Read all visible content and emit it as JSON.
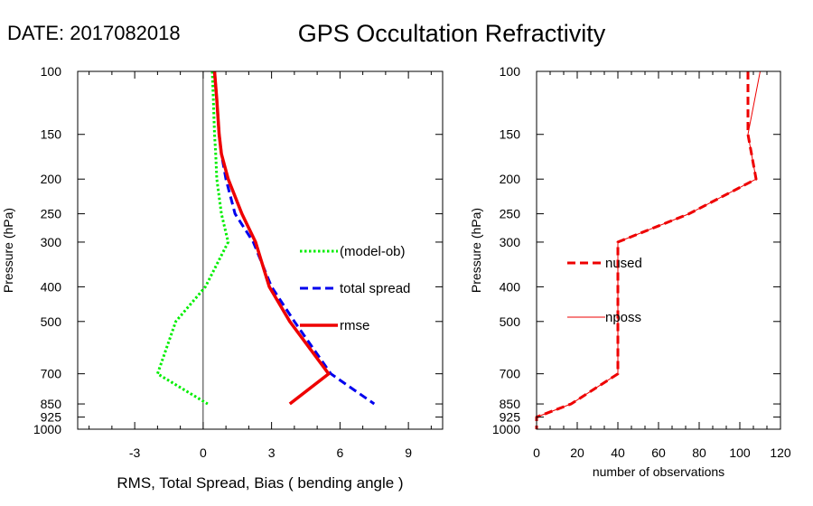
{
  "header": {
    "date": "DATE: 2017082018",
    "title": "GPS Occultation Refractivity"
  },
  "chart_data": [
    {
      "type": "line",
      "xlabel": "RMS, Total Spread, Bias ( bending angle )",
      "ylabel": "Pressure (hPa)",
      "xlim": [
        -5.5,
        10.5
      ],
      "ylim": [
        1000,
        100
      ],
      "y_scale": "log",
      "x_ticks": [
        -3,
        0,
        3,
        6,
        9
      ],
      "y_ticks": [
        100,
        150,
        200,
        250,
        300,
        400,
        500,
        700,
        850,
        925,
        1000
      ],
      "legend_position": "right",
      "grid": false,
      "series": [
        {
          "name": "(model-ob)",
          "color": "#00ee00",
          "style": "dotted",
          "x": [
            0.4,
            0.45,
            0.5,
            0.55,
            0.6,
            0.8,
            1.1,
            0.1,
            -1.2,
            -2.0,
            0.2
          ],
          "y": [
            100,
            120,
            150,
            170,
            200,
            250,
            300,
            400,
            500,
            700,
            850
          ]
        },
        {
          "name": "total spread",
          "color": "#0000ee",
          "style": "dashed",
          "x": [
            0.5,
            0.6,
            0.7,
            0.8,
            1.0,
            1.4,
            2.2,
            3.0,
            4.0,
            5.6,
            7.5
          ],
          "y": [
            100,
            120,
            150,
            170,
            200,
            250,
            300,
            400,
            500,
            700,
            850
          ]
        },
        {
          "name": "rmse",
          "color": "#ee0000",
          "style": "solid",
          "x": [
            0.5,
            0.6,
            0.7,
            0.8,
            1.1,
            1.7,
            2.3,
            2.9,
            3.8,
            5.5,
            3.8
          ],
          "y": [
            100,
            120,
            150,
            170,
            200,
            250,
            300,
            400,
            500,
            700,
            850
          ]
        }
      ]
    },
    {
      "type": "line",
      "xlabel": "number of observations",
      "ylabel": "Pressure (hPa)",
      "xlim": [
        0,
        120
      ],
      "ylim": [
        1000,
        100
      ],
      "y_scale": "log",
      "x_ticks": [
        0,
        20,
        40,
        60,
        80,
        100,
        120
      ],
      "y_ticks": [
        100,
        150,
        200,
        250,
        300,
        400,
        500,
        700,
        850,
        925,
        1000
      ],
      "legend_position": "left",
      "grid": false,
      "series": [
        {
          "name": "nused",
          "color": "#ee0000",
          "style": "dashed",
          "x": [
            104,
            104,
            108,
            75,
            40,
            40,
            40,
            40,
            17,
            0,
            0
          ],
          "y": [
            100,
            150,
            200,
            250,
            300,
            400,
            500,
            700,
            850,
            925,
            1000
          ]
        },
        {
          "name": "nposs",
          "color": "#ee0000",
          "style": "thin",
          "x": [
            110,
            104,
            108,
            75,
            40,
            40,
            40,
            40,
            17,
            0,
            0
          ],
          "y": [
            100,
            150,
            200,
            250,
            300,
            400,
            500,
            700,
            850,
            925,
            1000
          ]
        }
      ]
    }
  ]
}
